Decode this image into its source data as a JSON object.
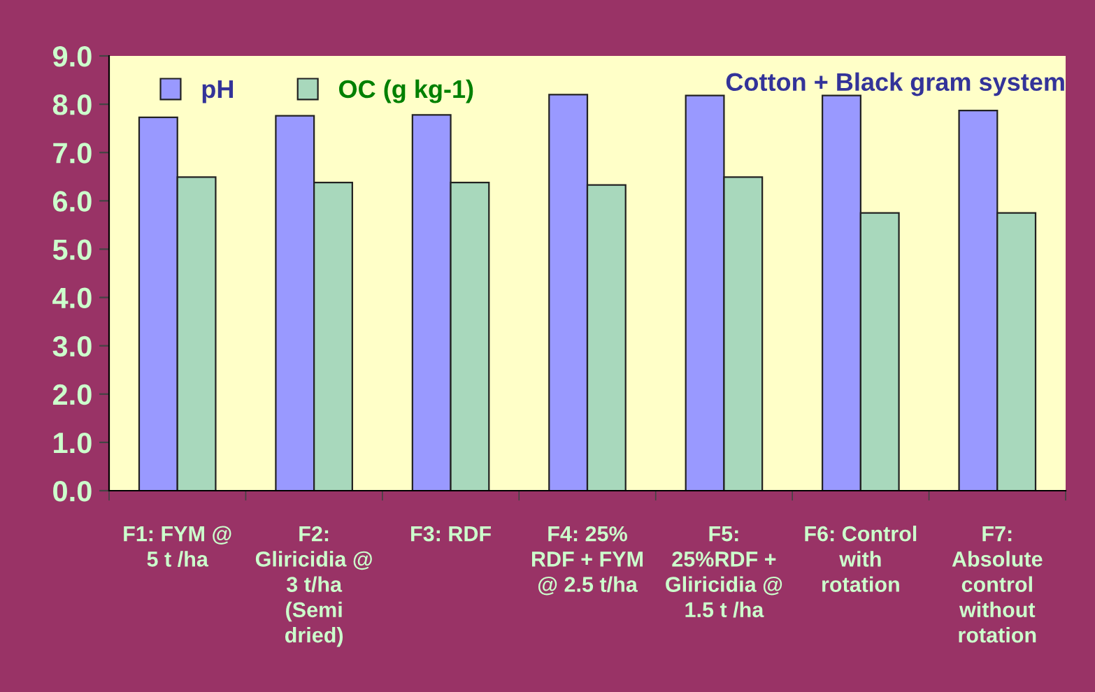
{
  "chart_data": {
    "type": "bar",
    "title": "Cotton + Black gram system",
    "categories": [
      "F1: FYM @\n5 t /ha",
      "F2:\nGliricidia @\n3 t/ha\n(Semi\ndried)",
      "F3: RDF",
      "F4: 25%\nRDF + FYM\n@ 2.5 t/ha",
      "F5:\n25%RDF +\nGliricidia @\n1.5 t /ha",
      "F6: Control\nwith\nrotation",
      "F7:\nAbsolute\ncontrol\nwithout\nrotation"
    ],
    "series": [
      {
        "name": "pH",
        "color": "#9999ff",
        "values": [
          7.73,
          7.76,
          7.78,
          8.2,
          8.18,
          8.18,
          7.87
        ]
      },
      {
        "name": "OC (g kg-1)",
        "color": "#a8d8bc",
        "values": [
          6.49,
          6.38,
          6.38,
          6.33,
          6.49,
          5.75,
          5.75
        ]
      }
    ],
    "ylim": [
      0,
      9
    ],
    "yticks": [
      {
        "value": 0,
        "label": "0.0"
      },
      {
        "value": 1,
        "label": "1.0"
      },
      {
        "value": 2,
        "label": "2.0"
      },
      {
        "value": 3,
        "label": "3.0"
      },
      {
        "value": 4,
        "label": "4.0"
      },
      {
        "value": 5,
        "label": "5.0"
      },
      {
        "value": 6,
        "label": "6.0"
      },
      {
        "value": 7,
        "label": "7.0"
      },
      {
        "value": 8,
        "label": "8.0"
      },
      {
        "value": 9,
        "label": "9.0"
      }
    ],
    "grid": false,
    "legend": "top left"
  }
}
